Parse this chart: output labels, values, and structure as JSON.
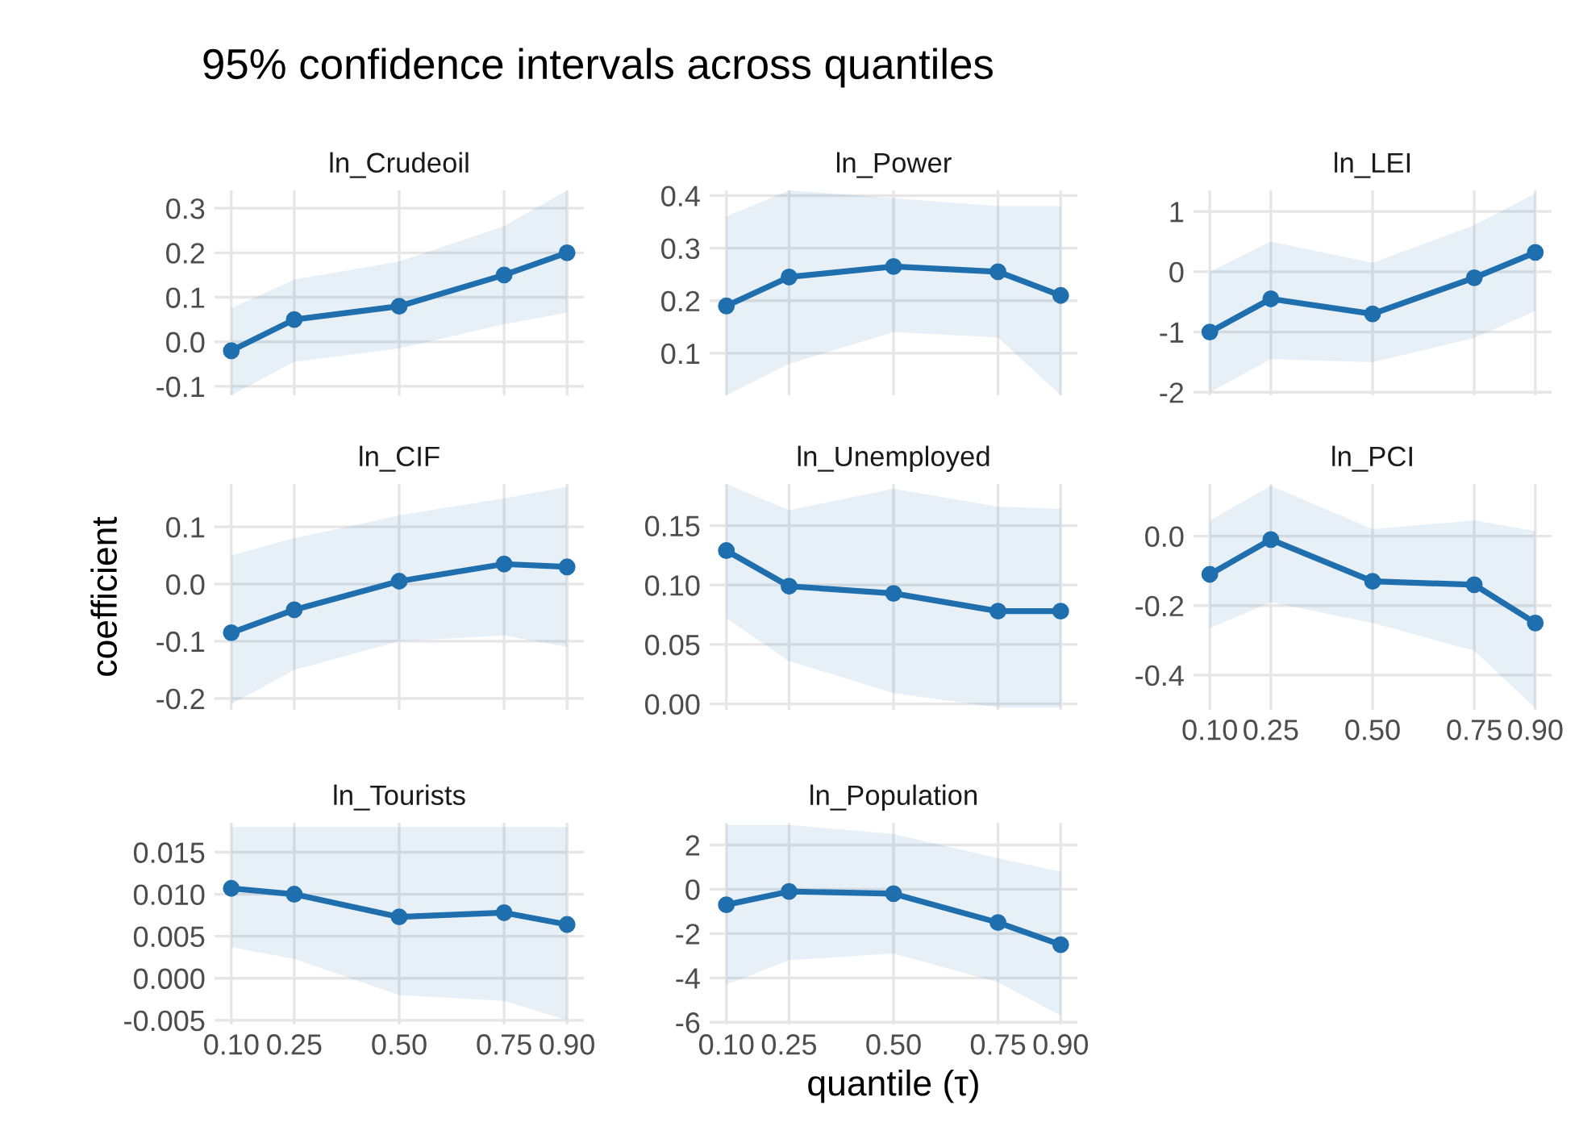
{
  "chart_data": [
    {
      "type": "line",
      "title": "ln_Crudeoil",
      "annotations": [
        "95% confidence intervals across quantiles"
      ],
      "x": [
        0.1,
        0.25,
        0.5,
        0.75,
        0.9
      ],
      "xlim": [
        0.06,
        0.94
      ],
      "xticks": [
        {
          "value": 0.1,
          "label": null
        },
        {
          "value": 0.25,
          "label": null
        },
        {
          "value": 0.5,
          "label": null
        },
        {
          "value": 0.75,
          "label": null
        },
        {
          "value": 0.9,
          "label": null
        }
      ],
      "ylim": [
        -0.12,
        0.34
      ],
      "yticks": [
        -0.1,
        {
          "value": 0,
          "label": "0.0"
        },
        0.1,
        0.2,
        0.3
      ],
      "tick_labels": "y",
      "grid": true,
      "marker": "circle",
      "series": [
        {
          "color": "#1f6fae",
          "values": [
            -0.02,
            0.05,
            0.08,
            0.15,
            0.2
          ],
          "lower": [
            -0.12,
            -0.045,
            -0.015,
            0.04,
            0.065
          ],
          "upper": [
            0.075,
            0.14,
            0.18,
            0.26,
            0.34
          ]
        }
      ]
    },
    {
      "type": "line",
      "title": "ln_Power",
      "x": [
        0.1,
        0.25,
        0.5,
        0.75,
        0.9
      ],
      "xlim": [
        0.06,
        0.94
      ],
      "xticks": [
        {
          "value": 0.1,
          "label": null
        },
        {
          "value": 0.25,
          "label": null
        },
        {
          "value": 0.5,
          "label": null
        },
        {
          "value": 0.75,
          "label": null
        },
        {
          "value": 0.9,
          "label": null
        }
      ],
      "ylim": [
        0.02,
        0.41
      ],
      "yticks": [
        0.1,
        0.2,
        0.3,
        0.4
      ],
      "tick_labels": "y",
      "grid": true,
      "marker": "circle",
      "series": [
        {
          "color": "#1f6fae",
          "values": [
            0.19,
            0.245,
            0.265,
            0.255,
            0.21
          ],
          "lower": [
            0.02,
            0.08,
            0.14,
            0.13,
            0.02
          ],
          "upper": [
            0.36,
            0.41,
            0.395,
            0.38,
            0.38
          ]
        }
      ]
    },
    {
      "type": "line",
      "title": "ln_LEI",
      "x": [
        0.1,
        0.25,
        0.5,
        0.75,
        0.9
      ],
      "xlim": [
        0.06,
        0.94
      ],
      "xticks": [
        {
          "value": 0.1,
          "label": null
        },
        {
          "value": 0.25,
          "label": null
        },
        {
          "value": 0.5,
          "label": null
        },
        {
          "value": 0.75,
          "label": null
        },
        {
          "value": 0.9,
          "label": null
        }
      ],
      "ylim": [
        -2.05,
        1.35
      ],
      "yticks": [
        -2,
        -1,
        0,
        1
      ],
      "tick_labels": "y",
      "grid": true,
      "marker": "circle",
      "series": [
        {
          "color": "#1f6fae",
          "values": [
            -1.0,
            -0.45,
            -0.7,
            -0.1,
            0.32
          ],
          "lower": [
            -2.0,
            -1.45,
            -1.5,
            -1.1,
            -0.65
          ],
          "upper": [
            0.0,
            0.5,
            0.15,
            0.77,
            1.3
          ]
        }
      ]
    },
    {
      "type": "line",
      "title": "ln_CIF",
      "ylabel": "coefficient",
      "x": [
        0.1,
        0.25,
        0.5,
        0.75,
        0.9
      ],
      "xlim": [
        0.06,
        0.94
      ],
      "xticks": [
        {
          "value": 0.1,
          "label": null
        },
        {
          "value": 0.25,
          "label": null
        },
        {
          "value": 0.5,
          "label": null
        },
        {
          "value": 0.75,
          "label": null
        },
        {
          "value": 0.9,
          "label": null
        }
      ],
      "ylim": [
        -0.22,
        0.175
      ],
      "yticks": [
        -0.2,
        -0.1,
        {
          "value": 0,
          "label": "0.0"
        },
        0.1
      ],
      "tick_labels": "y",
      "grid": true,
      "marker": "circle",
      "series": [
        {
          "color": "#1f6fae",
          "values": [
            -0.085,
            -0.045,
            0.005,
            0.035,
            0.03
          ],
          "lower": [
            -0.21,
            -0.15,
            -0.1,
            -0.09,
            -0.11
          ],
          "upper": [
            0.05,
            0.08,
            0.12,
            0.15,
            0.17
          ]
        }
      ]
    },
    {
      "type": "line",
      "title": "ln_Unemployed",
      "x": [
        0.1,
        0.25,
        0.5,
        0.75,
        0.9
      ],
      "xlim": [
        0.06,
        0.94
      ],
      "xticks": [
        {
          "value": 0.1,
          "label": null
        },
        {
          "value": 0.25,
          "label": null
        },
        {
          "value": 0.5,
          "label": null
        },
        {
          "value": 0.75,
          "label": null
        },
        {
          "value": 0.9,
          "label": null
        }
      ],
      "ylim": [
        -0.005,
        0.185
      ],
      "yticks": [
        {
          "value": 0,
          "label": "0.00"
        },
        {
          "value": 0.05,
          "label": "0.05"
        },
        {
          "value": 0.1,
          "label": "0.10"
        },
        {
          "value": 0.15,
          "label": "0.15"
        }
      ],
      "tick_labels": "y",
      "grid": true,
      "marker": "circle",
      "series": [
        {
          "color": "#1f6fae",
          "values": [
            0.129,
            0.099,
            0.093,
            0.078,
            0.078
          ],
          "lower": [
            0.072,
            0.036,
            0.009,
            -0.003,
            -0.003
          ],
          "upper": [
            0.185,
            0.163,
            0.181,
            0.166,
            0.164
          ]
        }
      ]
    },
    {
      "type": "line",
      "title": "ln_PCI",
      "x": [
        0.1,
        0.25,
        0.5,
        0.75,
        0.9
      ],
      "xlim": [
        0.06,
        0.94
      ],
      "xticks": [
        {
          "value": 0.1,
          "label": "0.10"
        },
        {
          "value": 0.25,
          "label": "0.25"
        },
        {
          "value": 0.5,
          "label": "0.50"
        },
        {
          "value": 0.75,
          "label": "0.75"
        },
        {
          "value": 0.9,
          "label": "0.90"
        }
      ],
      "ylim": [
        -0.5,
        0.15
      ],
      "yticks": [
        -0.4,
        -0.2,
        {
          "value": 0,
          "label": "0.0"
        }
      ],
      "grid": true,
      "marker": "circle",
      "series": [
        {
          "color": "#1f6fae",
          "values": [
            -0.11,
            -0.01,
            -0.13,
            -0.14,
            -0.25
          ],
          "lower": [
            -0.265,
            -0.19,
            -0.25,
            -0.33,
            -0.495
          ],
          "upper": [
            0.045,
            0.145,
            0.02,
            0.045,
            0.015
          ]
        }
      ]
    },
    {
      "type": "line",
      "title": "ln_Tourists",
      "x": [
        0.1,
        0.25,
        0.5,
        0.75,
        0.9
      ],
      "xlim": [
        0.06,
        0.94
      ],
      "xticks": [
        {
          "value": 0.1,
          "label": "0.10"
        },
        {
          "value": 0.25,
          "label": "0.25"
        },
        {
          "value": 0.5,
          "label": "0.50"
        },
        {
          "value": 0.75,
          "label": "0.75"
        },
        {
          "value": 0.9,
          "label": "0.90"
        }
      ],
      "ylim": [
        -0.0055,
        0.0185
      ],
      "yticks": [
        -0.005,
        {
          "value": 0,
          "label": "0.000"
        },
        0.005,
        {
          "value": 0.01,
          "label": "0.010"
        },
        0.015
      ],
      "grid": true,
      "marker": "circle",
      "series": [
        {
          "color": "#1f6fae",
          "values": [
            0.0107,
            0.01,
            0.0073,
            0.0078,
            0.0064
          ],
          "lower": [
            0.0037,
            0.0023,
            -0.002,
            -0.0027,
            -0.005
          ],
          "upper": [
            0.018,
            0.018,
            0.018,
            0.018,
            0.018
          ]
        }
      ]
    },
    {
      "type": "line",
      "title": "ln_Population",
      "xlabel": "quantile (τ)",
      "x": [
        0.1,
        0.25,
        0.5,
        0.75,
        0.9
      ],
      "xlim": [
        0.06,
        0.94
      ],
      "xticks": [
        {
          "value": 0.1,
          "label": "0.10"
        },
        {
          "value": 0.25,
          "label": "0.25"
        },
        {
          "value": 0.5,
          "label": "0.50"
        },
        {
          "value": 0.75,
          "label": "0.75"
        },
        {
          "value": 0.9,
          "label": "0.90"
        }
      ],
      "ylim": [
        -6.1,
        3.0
      ],
      "yticks": [
        -6,
        -4,
        -2,
        0,
        2
      ],
      "grid": true,
      "marker": "circle",
      "series": [
        {
          "color": "#1f6fae",
          "values": [
            -0.7,
            -0.1,
            -0.2,
            -1.5,
            -2.5
          ],
          "lower": [
            -4.3,
            -3.2,
            -2.9,
            -4.2,
            -5.7
          ],
          "upper": [
            2.9,
            2.9,
            2.5,
            1.4,
            0.8
          ]
        }
      ]
    }
  ]
}
